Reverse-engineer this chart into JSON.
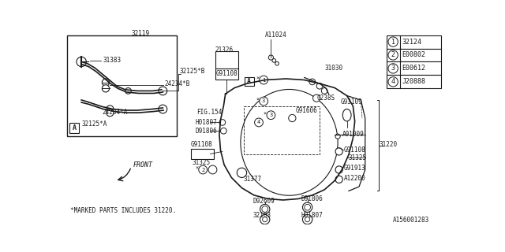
{
  "bg_color": "#ffffff",
  "line_color": "#1a1a1a",
  "legend_items": [
    {
      "num": "1",
      "code": "32124"
    },
    {
      "num": "2",
      "code": "E00802"
    },
    {
      "num": "3",
      "code": "E00612"
    },
    {
      "num": "4",
      "code": "J20888"
    }
  ],
  "footnote": "*MARKED PARTS INCLUDES 31220.",
  "diagram_id": "A156001283"
}
